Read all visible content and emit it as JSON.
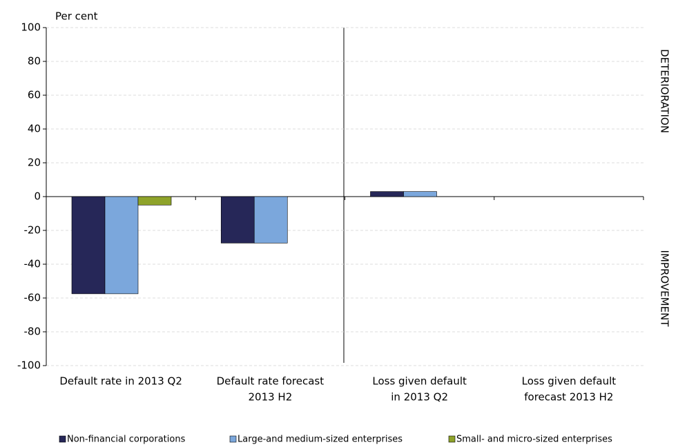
{
  "chart_data": {
    "type": "bar",
    "ylabel": "Per cent",
    "annotations": [
      "DETERIORATION",
      "IMPROVEMENT"
    ],
    "categories": [
      [
        "Default rate in 2013 Q2"
      ],
      [
        "Default rate forecast",
        "2013 H2"
      ],
      [
        "Loss given default",
        "in 2013 Q2"
      ],
      [
        "Loss given default",
        "forecast  2013 H2"
      ]
    ],
    "series": [
      {
        "name": "Non-financial corporations",
        "color": "#262758",
        "values": [
          -57.5,
          -27.5,
          3,
          0
        ]
      },
      {
        "name": "Large-and medium-sized enterprises",
        "color": "#7ba7dc",
        "values": [
          -57.5,
          -27.5,
          3,
          0
        ]
      },
      {
        "name": "Small- and micro-sized enterprises",
        "color": "#8ea32a",
        "values": [
          -5,
          null,
          null,
          null
        ]
      }
    ],
    "ylim": [
      -100,
      100
    ],
    "yticks": [
      -100,
      -80,
      -60,
      -40,
      -20,
      0,
      20,
      40,
      60,
      80,
      100
    ],
    "grid": true
  }
}
